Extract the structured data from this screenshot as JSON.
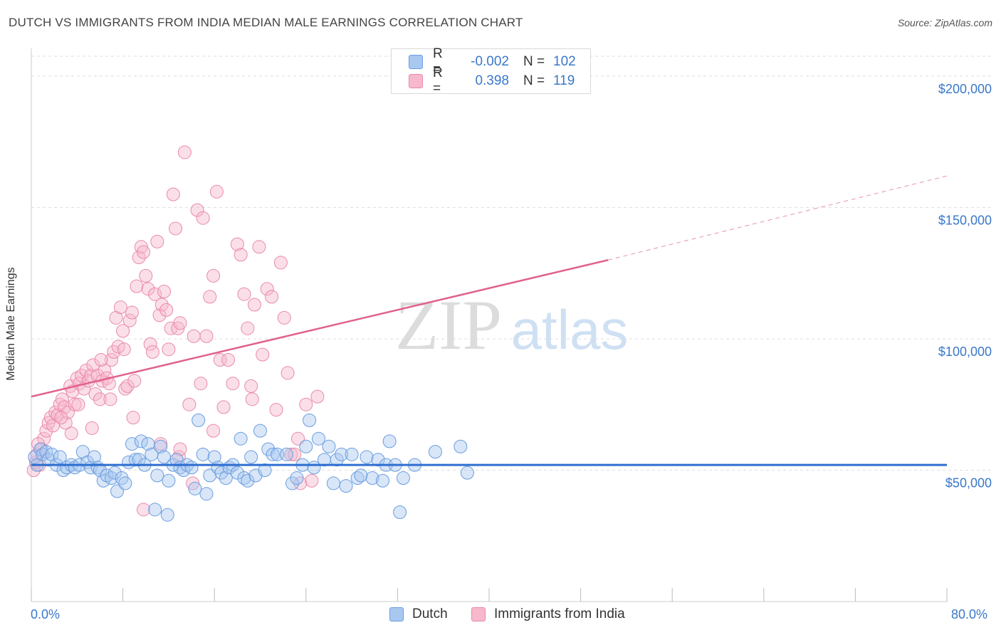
{
  "title": "DUTCH VS IMMIGRANTS FROM INDIA MEDIAN MALE EARNINGS CORRELATION CHART",
  "source": "Source: ZipAtlas.com",
  "watermark": {
    "part1": "ZIP",
    "part2": "atlas"
  },
  "legend": {
    "rows": [
      {
        "r_label": "R =",
        "r_value": "-0.002",
        "n_label": "N =",
        "n_value": "102"
      },
      {
        "r_label": "R =",
        "r_value": "0.398",
        "n_label": "N =",
        "n_value": "119"
      }
    ]
  },
  "bottom_legend": {
    "dutch": "Dutch",
    "india": "Immigrants from India"
  },
  "colors": {
    "dutch_fill": "#a9c8f0",
    "dutch_stroke": "#6a9de0",
    "dutch_line": "#2f6fd0",
    "india_fill": "#f7b8cb",
    "india_stroke": "#e98aa9",
    "india_line": "#e0628c",
    "tick_label": "#3a78c9",
    "grid": "#dddddd"
  },
  "chart_data": {
    "type": "scatter",
    "title": "DUTCH VS IMMIGRANTS FROM INDIA MEDIAN MALE EARNINGS CORRELATION CHART",
    "xlabel": "",
    "ylabel": "Median Male Earnings",
    "xlim": [
      0,
      80
    ],
    "ylim": [
      0,
      210000
    ],
    "x_tick_labels": [
      "0.0%",
      "80.0%"
    ],
    "y_ticks": [
      50000,
      100000,
      150000,
      200000
    ],
    "y_tick_labels": [
      "$50,000",
      "$100,000",
      "$150,000",
      "$200,000"
    ],
    "grid": true,
    "legend_position": "top-center",
    "series": [
      {
        "name": "Dutch",
        "r": -0.002,
        "n": 102,
        "trend": {
          "x": [
            0,
            80
          ],
          "y": [
            52000,
            52000
          ]
        },
        "points": [
          [
            0.3,
            55000
          ],
          [
            0.5,
            52000
          ],
          [
            0.8,
            58000
          ],
          [
            1.0,
            56000
          ],
          [
            1.3,
            57000
          ],
          [
            1.5,
            54000
          ],
          [
            1.8,
            56000
          ],
          [
            2.2,
            52000
          ],
          [
            2.5,
            55000
          ],
          [
            2.8,
            50000
          ],
          [
            3.1,
            51000
          ],
          [
            3.5,
            52000
          ],
          [
            3.8,
            51000
          ],
          [
            4.2,
            52000
          ],
          [
            4.5,
            57000
          ],
          [
            4.9,
            53000
          ],
          [
            5.2,
            51000
          ],
          [
            5.5,
            55000
          ],
          [
            5.8,
            51000
          ],
          [
            6.0,
            50000
          ],
          [
            6.3,
            46000
          ],
          [
            6.6,
            48000
          ],
          [
            7.0,
            47000
          ],
          [
            7.3,
            49000
          ],
          [
            7.5,
            42000
          ],
          [
            7.9,
            47000
          ],
          [
            8.2,
            45000
          ],
          [
            8.5,
            53000
          ],
          [
            8.8,
            60000
          ],
          [
            9.1,
            54000
          ],
          [
            9.4,
            54000
          ],
          [
            9.6,
            61000
          ],
          [
            9.9,
            52000
          ],
          [
            10.2,
            60000
          ],
          [
            10.5,
            56000
          ],
          [
            10.8,
            35000
          ],
          [
            11.0,
            48000
          ],
          [
            11.3,
            59000
          ],
          [
            11.6,
            55000
          ],
          [
            11.9,
            33000
          ],
          [
            12.0,
            46000
          ],
          [
            12.4,
            52000
          ],
          [
            12.7,
            54000
          ],
          [
            13.0,
            51000
          ],
          [
            13.3,
            50000
          ],
          [
            13.6,
            52000
          ],
          [
            14.0,
            51000
          ],
          [
            14.3,
            43000
          ],
          [
            14.6,
            69000
          ],
          [
            15.0,
            56000
          ],
          [
            15.3,
            41000
          ],
          [
            15.6,
            48000
          ],
          [
            16.0,
            55000
          ],
          [
            16.3,
            51000
          ],
          [
            16.6,
            49000
          ],
          [
            17.0,
            47000
          ],
          [
            17.3,
            51000
          ],
          [
            17.6,
            52000
          ],
          [
            18.0,
            49000
          ],
          [
            18.3,
            62000
          ],
          [
            18.6,
            47000
          ],
          [
            18.9,
            46000
          ],
          [
            19.2,
            55000
          ],
          [
            19.6,
            48000
          ],
          [
            20.0,
            65000
          ],
          [
            20.4,
            50000
          ],
          [
            20.7,
            58000
          ],
          [
            21.1,
            56000
          ],
          [
            21.5,
            56000
          ],
          [
            22.3,
            56000
          ],
          [
            22.8,
            45000
          ],
          [
            23.2,
            47000
          ],
          [
            23.7,
            52000
          ],
          [
            24.0,
            59000
          ],
          [
            24.3,
            69000
          ],
          [
            24.7,
            51000
          ],
          [
            25.1,
            62000
          ],
          [
            25.6,
            54000
          ],
          [
            26.0,
            59000
          ],
          [
            26.4,
            45000
          ],
          [
            26.7,
            54000
          ],
          [
            27.1,
            56000
          ],
          [
            27.5,
            44000
          ],
          [
            28.0,
            56000
          ],
          [
            28.5,
            47000
          ],
          [
            28.8,
            48000
          ],
          [
            29.3,
            55000
          ],
          [
            29.8,
            47000
          ],
          [
            30.3,
            54000
          ],
          [
            30.7,
            46000
          ],
          [
            31.0,
            52000
          ],
          [
            31.3,
            61000
          ],
          [
            31.8,
            52000
          ],
          [
            32.2,
            34000
          ],
          [
            32.5,
            47000
          ],
          [
            33.5,
            52000
          ],
          [
            35.3,
            57000
          ],
          [
            37.5,
            59000
          ],
          [
            38.1,
            49000
          ]
        ]
      },
      {
        "name": "Immigrants from India",
        "r": 0.398,
        "n": 119,
        "trend": {
          "x": [
            0,
            50.4
          ],
          "y": [
            78000,
            130000
          ]
        },
        "trend_dashed": {
          "x": [
            50.4,
            80
          ],
          "y": [
            130000,
            162000
          ]
        },
        "points": [
          [
            0.2,
            50000
          ],
          [
            0.4,
            53000
          ],
          [
            0.5,
            56000
          ],
          [
            0.7,
            52000
          ],
          [
            0.9,
            58000
          ],
          [
            1.1,
            62000
          ],
          [
            1.3,
            65000
          ],
          [
            1.5,
            68000
          ],
          [
            1.7,
            70000
          ],
          [
            1.9,
            67000
          ],
          [
            2.1,
            72000
          ],
          [
            2.3,
            71000
          ],
          [
            2.5,
            75000
          ],
          [
            2.7,
            77000
          ],
          [
            2.9,
            74000
          ],
          [
            3.0,
            68000
          ],
          [
            3.2,
            72000
          ],
          [
            3.4,
            82000
          ],
          [
            3.6,
            80000
          ],
          [
            3.8,
            75000
          ],
          [
            4.0,
            85000
          ],
          [
            4.2,
            83000
          ],
          [
            4.4,
            86000
          ],
          [
            4.6,
            81000
          ],
          [
            4.8,
            88000
          ],
          [
            5.0,
            84000
          ],
          [
            5.2,
            86000
          ],
          [
            5.4,
            90000
          ],
          [
            5.6,
            79000
          ],
          [
            5.8,
            86000
          ],
          [
            6.0,
            77000
          ],
          [
            6.2,
            84000
          ],
          [
            6.4,
            88000
          ],
          [
            6.6,
            85000
          ],
          [
            6.8,
            83000
          ],
          [
            7.0,
            92000
          ],
          [
            7.2,
            95000
          ],
          [
            7.4,
            108000
          ],
          [
            7.6,
            97000
          ],
          [
            7.8,
            112000
          ],
          [
            8.0,
            103000
          ],
          [
            8.2,
            81000
          ],
          [
            8.4,
            82000
          ],
          [
            8.6,
            107000
          ],
          [
            8.8,
            110000
          ],
          [
            9.0,
            84000
          ],
          [
            9.2,
            120000
          ],
          [
            9.4,
            131000
          ],
          [
            9.6,
            135000
          ],
          [
            9.8,
            133000
          ],
          [
            10.0,
            124000
          ],
          [
            10.2,
            119000
          ],
          [
            10.4,
            98000
          ],
          [
            10.6,
            95000
          ],
          [
            10.8,
            117000
          ],
          [
            11.0,
            137000
          ],
          [
            11.2,
            109000
          ],
          [
            11.4,
            113000
          ],
          [
            11.6,
            118000
          ],
          [
            11.8,
            111000
          ],
          [
            12.0,
            96000
          ],
          [
            12.2,
            104000
          ],
          [
            12.4,
            155000
          ],
          [
            12.6,
            142000
          ],
          [
            12.8,
            104000
          ],
          [
            13.0,
            106000
          ],
          [
            13.4,
            171000
          ],
          [
            13.8,
            75000
          ],
          [
            14.2,
            101000
          ],
          [
            14.5,
            149000
          ],
          [
            14.8,
            83000
          ],
          [
            15.0,
            146000
          ],
          [
            15.3,
            101000
          ],
          [
            15.6,
            116000
          ],
          [
            15.9,
            124000
          ],
          [
            16.2,
            156000
          ],
          [
            16.5,
            92000
          ],
          [
            16.8,
            74000
          ],
          [
            17.2,
            92000
          ],
          [
            17.6,
            83000
          ],
          [
            18.0,
            136000
          ],
          [
            18.3,
            132000
          ],
          [
            18.6,
            117000
          ],
          [
            18.9,
            104000
          ],
          [
            19.2,
            82000
          ],
          [
            19.5,
            113000
          ],
          [
            19.9,
            135000
          ],
          [
            20.2,
            94000
          ],
          [
            20.6,
            119000
          ],
          [
            21.0,
            116000
          ],
          [
            21.4,
            73000
          ],
          [
            21.8,
            129000
          ],
          [
            22.1,
            108000
          ],
          [
            22.4,
            87000
          ],
          [
            22.7,
            56000
          ],
          [
            23.0,
            56000
          ],
          [
            23.5,
            45000
          ],
          [
            24.0,
            75000
          ],
          [
            24.5,
            46000
          ],
          [
            25.0,
            78000
          ],
          [
            3.5,
            64000
          ],
          [
            5.3,
            66000
          ],
          [
            8.9,
            70000
          ],
          [
            9.8,
            35000
          ],
          [
            11.3,
            60000
          ],
          [
            2.6,
            70000
          ],
          [
            4.1,
            75000
          ],
          [
            6.1,
            92000
          ],
          [
            6.9,
            77000
          ],
          [
            8.1,
            96000
          ],
          [
            12.9,
            55000
          ],
          [
            14.1,
            45000
          ],
          [
            15.9,
            65000
          ],
          [
            13.0,
            58000
          ],
          [
            19.3,
            77000
          ],
          [
            23.3,
            62000
          ],
          [
            1.0,
            56000
          ],
          [
            0.6,
            60000
          ]
        ]
      }
    ]
  }
}
